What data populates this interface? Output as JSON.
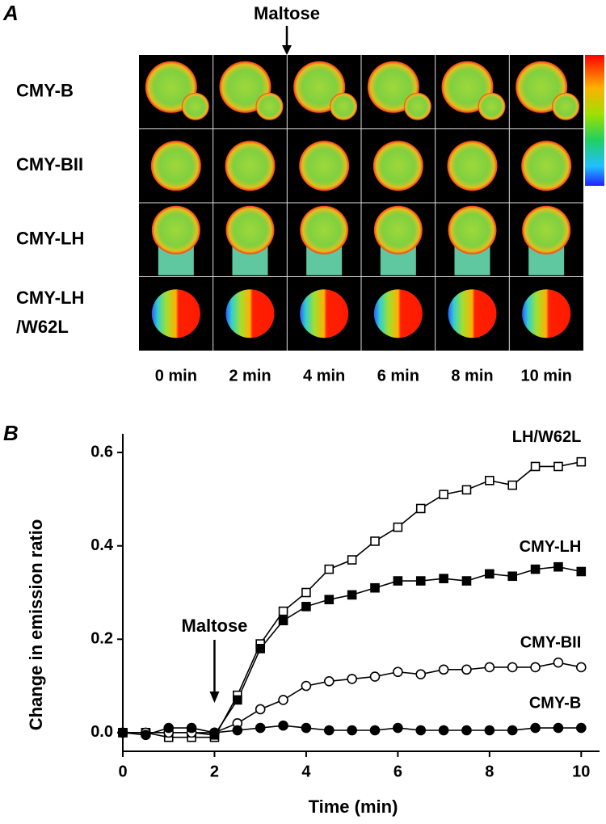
{
  "panel_a": {
    "label": "A",
    "annotation": "Maltose",
    "rows": [
      [
        "CMY-B"
      ],
      [
        "CMY-BII"
      ],
      [
        "CMY-LH"
      ],
      [
        "CMY-LH",
        "/W62L"
      ]
    ],
    "columns": [
      "0 min",
      "2 min",
      "4 min",
      "6 min",
      "8 min",
      "10 min"
    ]
  },
  "chart_data": {
    "type": "line",
    "panel_label": "B",
    "x_label": "Time (min)",
    "y_label": "Change in emission ratio",
    "annotation": {
      "text": "Maltose",
      "x": 2
    },
    "x": [
      0,
      0.5,
      1,
      1.5,
      2,
      2.5,
      3,
      3.5,
      4,
      4.5,
      5,
      5.5,
      6,
      6.5,
      7,
      7.5,
      8,
      8.5,
      9,
      9.5,
      10
    ],
    "xlim": [
      0,
      10.4
    ],
    "xticks": [
      0,
      2,
      4,
      6,
      8,
      10
    ],
    "ylim": [
      -0.04,
      0.64
    ],
    "yticks": [
      {
        "value": 0,
        "label": "0.0"
      },
      0.2,
      0.4,
      0.6
    ],
    "series": [
      {
        "name": "LH/W62L",
        "color": "#000000",
        "marker": "square",
        "filled": false,
        "values": [
          0,
          0,
          -0.01,
          -0.01,
          -0.01,
          0.08,
          0.19,
          0.26,
          0.3,
          0.35,
          0.37,
          0.41,
          0.44,
          0.48,
          0.51,
          0.52,
          0.54,
          0.53,
          0.57,
          0.57,
          0.58
        ]
      },
      {
        "name": "CMY-LH",
        "color": "#000000",
        "marker": "square",
        "filled": true,
        "values": [
          0,
          0,
          0,
          0,
          -0.005,
          0.07,
          0.18,
          0.24,
          0.27,
          0.285,
          0.295,
          0.31,
          0.325,
          0.325,
          0.33,
          0.325,
          0.34,
          0.335,
          0.35,
          0.355,
          0.345
        ]
      },
      {
        "name": "CMY-BII",
        "color": "#000000",
        "marker": "circle",
        "filled": false,
        "values": [
          0,
          0,
          0,
          0,
          0,
          0.02,
          0.05,
          0.07,
          0.1,
          0.11,
          0.115,
          0.12,
          0.13,
          0.125,
          0.135,
          0.135,
          0.14,
          0.14,
          0.14,
          0.15,
          0.14
        ]
      },
      {
        "name": "CMY-B",
        "color": "#000000",
        "marker": "circle",
        "filled": true,
        "values": [
          0,
          -0.005,
          0.01,
          0.01,
          0,
          0.005,
          0.01,
          0.015,
          0.01,
          0.005,
          0.005,
          0.005,
          0.01,
          0.005,
          0.005,
          0.005,
          0.005,
          0.005,
          0.01,
          0.01,
          0.01
        ]
      }
    ]
  }
}
